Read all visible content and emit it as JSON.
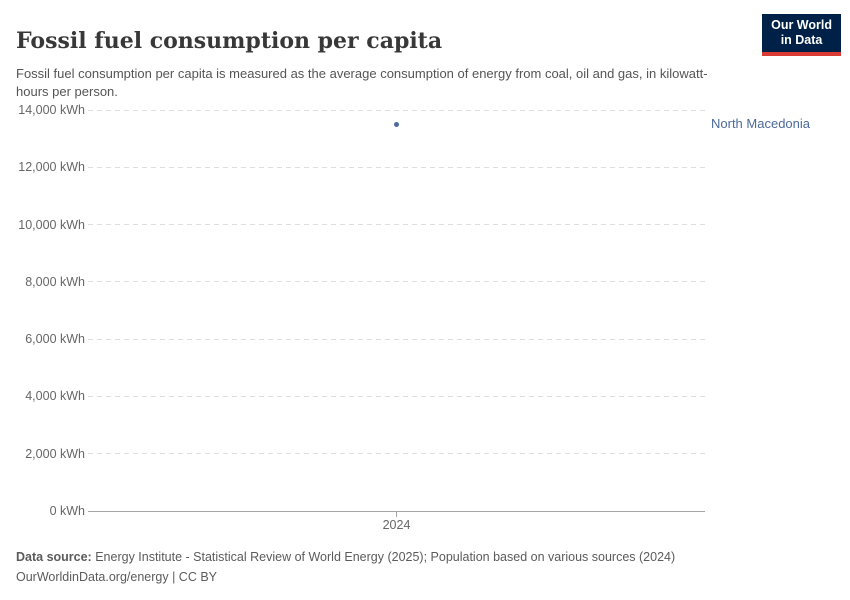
{
  "header": {
    "title": "Fossil fuel consumption per capita",
    "subtitle": "Fossil fuel consumption per capita is measured as the average consumption of energy from coal, oil and gas, in kilowatt-hours per person.",
    "logo": {
      "line1": "Our World",
      "line2": "in Data"
    }
  },
  "chart_data": {
    "type": "scatter",
    "title": "Fossil fuel consumption per capita",
    "x": [
      2024
    ],
    "x_tick_labels": [
      "2024"
    ],
    "series": [
      {
        "name": "North Macedonia",
        "x": [
          2024
        ],
        "values": [
          13500
        ],
        "color": "#4c6a9c"
      }
    ],
    "xlabel": "",
    "ylabel": "",
    "y_unit": "kWh",
    "ylim": [
      0,
      14000
    ],
    "y_ticks": [
      0,
      2000,
      4000,
      6000,
      8000,
      10000,
      12000,
      14000
    ],
    "y_tick_labels": [
      "0 kWh",
      "2,000 kWh",
      "4,000 kWh",
      "6,000 kWh",
      "8,000 kWh",
      "10,000 kWh",
      "12,000 kWh",
      "14,000 kWh"
    ],
    "grid": "horizontal-dashed",
    "legend_position": "entity-label-right-of-plot"
  },
  "footer": {
    "datasource_label": "Data source:",
    "datasource_text": " Energy Institute - Statistical Review of World Energy (2025); Population based on various sources (2024)",
    "link_line": "OurWorldinData.org/energy | CC BY"
  },
  "colors": {
    "title": "#383838",
    "subtitle": "#555555",
    "tick_label": "#666666",
    "gridline": "#dddddd",
    "axis": "#a5a5a5",
    "series": "#4c6a9c",
    "footer": "#5b5b5b",
    "logo_bg": "#002147",
    "logo_bar": "#d93a34"
  }
}
